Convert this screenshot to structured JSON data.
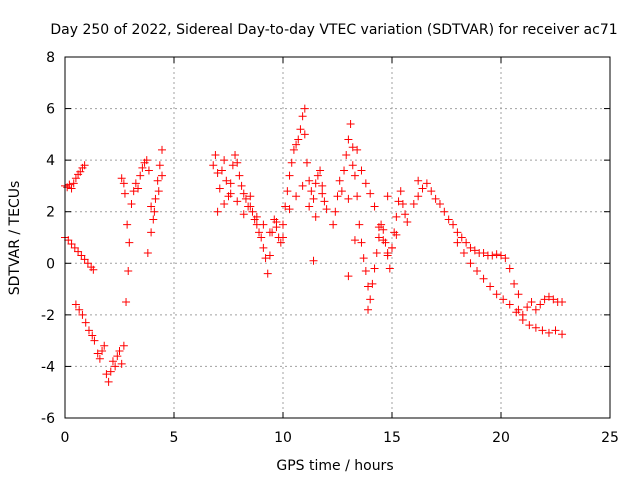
{
  "chart_data": {
    "type": "scatter",
    "title": "Day 250 of 2022, Sidereal Day-to-day VTEC variation (SDTVAR) for receiver ac71",
    "xlabel": "GPS time / hours",
    "ylabel": "SDTVAR / TECUs",
    "xlim": [
      0,
      25
    ],
    "ylim": [
      -6,
      8
    ],
    "xticks": [
      0,
      5,
      10,
      15,
      20,
      25
    ],
    "yticks": [
      -6,
      -4,
      -2,
      0,
      2,
      4,
      6,
      8
    ],
    "x_tick_labels": [
      "0",
      "5",
      "10",
      "15",
      "20",
      "25"
    ],
    "y_tick_labels": [
      "-6",
      "-4",
      "-2",
      "0",
      "2",
      "4",
      "6",
      "8"
    ],
    "grid": true,
    "marker": "+",
    "color": "#ff0000",
    "series": [
      {
        "name": "SDTVAR",
        "x": [
          0.0,
          0.1,
          0.2,
          0.3,
          0.4,
          0.5,
          0.6,
          0.7,
          0.8,
          0.9,
          0.0,
          0.15,
          0.3,
          0.45,
          0.6,
          0.75,
          0.9,
          1.05,
          1.2,
          1.3,
          0.5,
          0.65,
          0.8,
          0.95,
          1.1,
          1.25,
          1.35,
          1.5,
          1.6,
          1.7,
          1.8,
          1.9,
          2.0,
          2.1,
          2.2,
          2.3,
          2.4,
          2.5,
          2.6,
          2.7,
          2.8,
          2.9,
          2.6,
          2.7,
          2.75,
          2.85,
          2.95,
          3.05,
          3.15,
          3.25,
          3.35,
          3.45,
          3.55,
          3.65,
          3.75,
          3.85,
          3.95,
          4.05,
          4.15,
          4.25,
          4.35,
          4.45,
          3.8,
          3.95,
          4.1,
          4.3,
          4.45,
          6.8,
          6.9,
          7.0,
          7.1,
          7.2,
          7.3,
          7.4,
          7.5,
          7.6,
          7.7,
          7.8,
          7.9,
          8.0,
          8.1,
          8.2,
          8.3,
          8.4,
          8.5,
          8.6,
          8.7,
          8.8,
          8.9,
          9.0,
          9.1,
          9.2,
          9.3,
          9.4,
          9.5,
          9.6,
          9.7,
          9.8,
          9.9,
          10.0,
          10.1,
          10.2,
          10.3,
          10.4,
          10.5,
          10.6,
          10.7,
          10.8,
          10.9,
          11.0,
          11.1,
          11.2,
          11.3,
          11.4,
          11.5,
          11.6,
          11.7,
          11.8,
          11.9,
          12.0,
          7.0,
          7.3,
          7.6,
          7.9,
          8.2,
          8.5,
          8.8,
          9.1,
          9.4,
          9.7,
          10.0,
          10.3,
          10.6,
          10.9,
          11.2,
          11.5,
          11.8,
          12.3,
          12.4,
          12.5,
          12.6,
          12.7,
          12.8,
          12.9,
          13.0,
          13.1,
          13.2,
          13.3,
          13.4,
          13.5,
          13.6,
          13.7,
          13.8,
          13.9,
          14.0,
          14.1,
          14.2,
          14.3,
          14.4,
          14.5,
          14.6,
          14.7,
          14.8,
          14.9,
          15.0,
          15.1,
          15.2,
          15.3,
          15.4,
          15.5,
          15.6,
          15.7,
          13.0,
          13.2,
          13.4,
          13.6,
          13.8,
          14.0,
          14.2,
          14.4,
          14.6,
          14.8,
          15.0,
          15.2,
          16.0,
          16.2,
          16.4,
          16.6,
          16.8,
          17.0,
          17.2,
          17.4,
          17.6,
          17.8,
          18.0,
          18.2,
          18.4,
          18.6,
          18.8,
          19.0,
          19.2,
          19.4,
          19.6,
          19.8,
          20.0,
          20.2,
          20.4,
          20.6,
          20.8,
          18.0,
          18.3,
          18.6,
          18.9,
          19.2,
          19.5,
          19.8,
          20.1,
          20.4,
          20.7,
          21.0,
          21.3,
          21.6,
          21.9,
          22.2,
          22.5,
          22.8,
          20.8,
          21.0,
          21.2,
          21.4,
          21.6,
          21.8,
          22.0,
          22.2,
          22.4,
          22.6,
          22.8,
          11.0,
          11.4,
          13.0,
          13.3,
          13.9,
          14.8,
          16.2
        ],
        "y": [
          3.0,
          2.95,
          3.05,
          2.9,
          3.1,
          3.3,
          3.45,
          3.55,
          3.7,
          3.8,
          1.0,
          0.9,
          0.75,
          0.6,
          0.45,
          0.3,
          0.15,
          0.0,
          -0.15,
          -0.25,
          -1.6,
          -1.8,
          -2.0,
          -2.3,
          -2.6,
          -2.8,
          -3.0,
          -3.5,
          -3.7,
          -3.4,
          -3.2,
          -4.3,
          -4.6,
          -4.2,
          -3.8,
          -4.0,
          -3.6,
          -3.4,
          -3.9,
          -3.2,
          -1.5,
          -0.3,
          3.3,
          3.1,
          2.7,
          1.5,
          0.8,
          2.3,
          2.8,
          3.1,
          2.9,
          3.4,
          3.7,
          3.9,
          4.0,
          3.6,
          2.2,
          1.7,
          2.5,
          3.2,
          3.8,
          4.4,
          0.4,
          1.2,
          2.0,
          2.8,
          3.4,
          3.8,
          4.2,
          3.5,
          2.9,
          3.6,
          4.0,
          3.2,
          2.6,
          3.1,
          3.8,
          4.2,
          3.9,
          3.4,
          3.0,
          2.7,
          2.5,
          2.2,
          2.6,
          2.0,
          1.7,
          1.5,
          1.2,
          1.0,
          0.6,
          0.2,
          -0.4,
          0.3,
          1.2,
          1.7,
          1.4,
          1.0,
          0.8,
          1.5,
          2.2,
          2.8,
          3.4,
          3.9,
          4.4,
          4.6,
          4.8,
          5.2,
          5.7,
          5.0,
          3.9,
          3.2,
          2.8,
          2.5,
          3.1,
          3.4,
          3.6,
          3.0,
          2.4,
          2.1,
          2.0,
          2.3,
          2.7,
          2.4,
          1.9,
          2.2,
          1.8,
          1.5,
          1.2,
          1.6,
          1.0,
          2.1,
          2.6,
          3.0,
          2.2,
          1.8,
          2.7,
          1.5,
          2.0,
          2.6,
          3.2,
          2.8,
          3.6,
          4.2,
          4.8,
          5.4,
          4.5,
          3.4,
          2.6,
          1.5,
          0.8,
          0.2,
          -0.3,
          -0.9,
          -1.4,
          -0.8,
          -0.2,
          0.4,
          1.0,
          1.5,
          1.3,
          0.8,
          0.3,
          -0.2,
          0.6,
          1.2,
          1.8,
          2.4,
          2.8,
          2.3,
          1.9,
          1.6,
          2.5,
          3.8,
          4.4,
          3.6,
          3.1,
          2.7,
          2.2,
          1.4,
          0.9,
          0.4,
          0.6,
          1.1,
          2.3,
          2.6,
          2.9,
          3.1,
          2.8,
          2.5,
          2.3,
          2.0,
          1.7,
          1.5,
          1.2,
          1.0,
          0.8,
          0.6,
          0.5,
          0.4,
          0.4,
          0.3,
          0.3,
          0.35,
          0.3,
          0.2,
          -0.2,
          -0.8,
          -1.2,
          0.8,
          0.4,
          0.0,
          -0.3,
          -0.6,
          -0.9,
          -1.2,
          -1.4,
          -1.6,
          -1.9,
          -2.2,
          -2.4,
          -2.5,
          -2.6,
          -2.7,
          -2.6,
          -2.75,
          -1.8,
          -2.0,
          -1.7,
          -1.5,
          -1.8,
          -1.6,
          -1.4,
          -1.3,
          -1.4,
          -1.5,
          -1.5,
          6.0,
          0.1,
          -0.5,
          0.9,
          -1.8,
          2.6,
          3.2
        ]
      }
    ]
  }
}
